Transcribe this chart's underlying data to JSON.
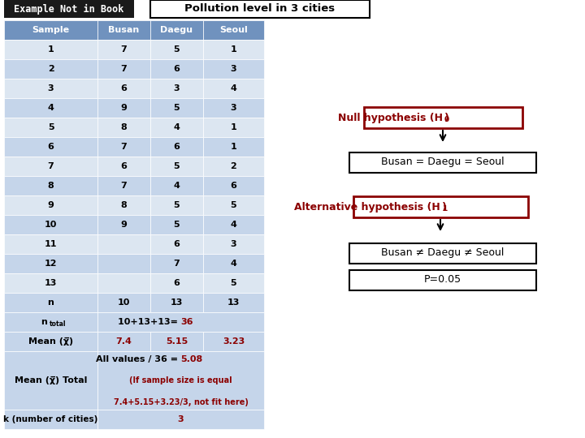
{
  "title": "Pollution level in 3 cities",
  "header_label": "Example Not in Book",
  "header_bg": "#1a1a1a",
  "header_text_color": "#ffffff",
  "col_headers": [
    "Sample",
    "Busan",
    "Daegu",
    "Seoul"
  ],
  "col_header_bg": "#7092be",
  "col_header_text": "#ffffff",
  "row_bg_light": "#dce6f1",
  "row_bg_dark": "#c5d5ea",
  "data_rows": [
    [
      "1",
      "7",
      "5",
      "1"
    ],
    [
      "2",
      "7",
      "6",
      "3"
    ],
    [
      "3",
      "6",
      "3",
      "4"
    ],
    [
      "4",
      "9",
      "5",
      "3"
    ],
    [
      "5",
      "8",
      "4",
      "1"
    ],
    [
      "6",
      "7",
      "6",
      "1"
    ],
    [
      "7",
      "6",
      "5",
      "2"
    ],
    [
      "8",
      "7",
      "4",
      "6"
    ],
    [
      "9",
      "8",
      "5",
      "5"
    ],
    [
      "10",
      "9",
      "5",
      "4"
    ],
    [
      "11",
      "",
      "6",
      "3"
    ],
    [
      "12",
      "",
      "7",
      "4"
    ],
    [
      "13",
      "",
      "6",
      "5"
    ],
    [
      "n",
      "10",
      "13",
      "13"
    ]
  ],
  "mean_values": [
    "7.4",
    "5.15",
    "3.23"
  ],
  "k_value": "3",
  "null_eq": "Busan = Daegu = Seoul",
  "alt_eq": "Busan ≠ Daegu ≠ Seoul",
  "p_value": "P=0.05",
  "dark_red": "#8b0000",
  "black": "#000000",
  "white": "#ffffff"
}
